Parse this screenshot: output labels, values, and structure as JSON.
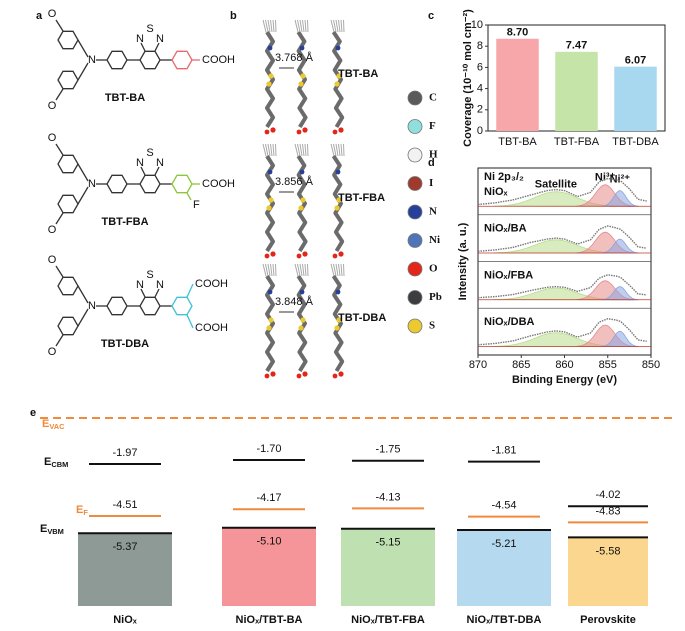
{
  "panel_letters": [
    "a",
    "b",
    "c",
    "d",
    "e"
  ],
  "molecules": [
    {
      "name": "TBT-BA",
      "amine": "N",
      "methoxy": [
        "O",
        "O"
      ],
      "thiadiazole": [
        "N",
        "S",
        "N"
      ],
      "acid": [
        "COOH"
      ],
      "acid_color": "#e8696b"
    },
    {
      "name": "TBT-FBA",
      "amine": "N",
      "methoxy": [
        "O",
        "O"
      ],
      "thiadiazole": [
        "N",
        "S",
        "N"
      ],
      "acid": [
        "COOH"
      ],
      "fluoro": "F",
      "acid_color": "#8cc63f"
    },
    {
      "name": "TBT-DBA",
      "amine": "N",
      "methoxy": [
        "O",
        "O"
      ],
      "thiadiazole": [
        "N",
        "S",
        "N"
      ],
      "acid": [
        "COOH",
        "COOH"
      ],
      "acid_color": "#3fc1d6"
    }
  ],
  "stacks": [
    {
      "name": "TBT-BA",
      "distance": "3.768 Å"
    },
    {
      "name": "TBT-FBA",
      "distance": "3.856 Å"
    },
    {
      "name": "TBT-DBA",
      "distance": "3.848 Å"
    }
  ],
  "elements": [
    {
      "symbol": "C",
      "color": "#5a5a5a"
    },
    {
      "symbol": "F",
      "color": "#8fe0dc"
    },
    {
      "symbol": "H",
      "color": "#f2f2f2"
    },
    {
      "symbol": "I",
      "color": "#9e3a2e"
    },
    {
      "symbol": "N",
      "color": "#26409a"
    },
    {
      "symbol": "Ni",
      "color": "#4f74b8"
    },
    {
      "symbol": "O",
      "color": "#e3261a"
    },
    {
      "symbol": "Pb",
      "color": "#3b3d40"
    },
    {
      "symbol": "S",
      "color": "#ecc92e"
    }
  ],
  "chart_data": [
    {
      "type": "bar",
      "ylabel": "Coverage (10⁻¹⁰ mol cm⁻²)",
      "categories": [
        "TBT-BA",
        "TBT-FBA",
        "TBT-DBA"
      ],
      "values": [
        8.7,
        7.47,
        6.07
      ],
      "value_labels": [
        "8.70",
        "7.47",
        "6.07"
      ],
      "colors": [
        "#f7a6a9",
        "#c4e4a8",
        "#a8d8f0"
      ],
      "ylim": [
        0,
        10
      ],
      "yticks": [
        0,
        2,
        4,
        6,
        8,
        10
      ]
    },
    {
      "type": "spectra",
      "title": "Ni 2p₃/₂",
      "xlabel": "Binding Energy (eV)",
      "ylabel": "Intensity (a. u.)",
      "xlim": [
        870,
        850
      ],
      "xticks": [
        870,
        865,
        860,
        855,
        850
      ],
      "x": [
        870,
        868,
        866,
        864,
        862,
        861,
        860,
        858.5,
        857,
        856,
        855,
        854,
        853.5,
        852.5,
        851.5,
        850.5
      ],
      "peak_labels": [
        "Satellite",
        "Ni³⁺",
        "Ni²⁺"
      ],
      "peak_colors": [
        "#b8dc8c",
        "#e88a8a",
        "#8aa6e0"
      ],
      "peak_label_colors": [
        "#8cc63f",
        "#d9342b",
        "#3a64b8"
      ],
      "series": [
        {
          "name": "NiOₓ",
          "color": "#222222",
          "values": [
            0.15,
            0.2,
            0.28,
            0.42,
            0.55,
            0.58,
            0.55,
            0.38,
            0.5,
            0.8,
            0.9,
            0.86,
            0.83,
            0.6,
            0.3,
            0.25
          ],
          "components": [
            {
              "center": 861,
              "width": 2.4,
              "height": 0.42
            },
            {
              "center": 855.3,
              "width": 1.1,
              "height": 0.62
            },
            {
              "center": 853.6,
              "width": 0.7,
              "height": 0.45
            }
          ]
        },
        {
          "name": "NiOₓ/BA",
          "color": "#d9342b",
          "values": [
            0.15,
            0.19,
            0.26,
            0.4,
            0.5,
            0.53,
            0.5,
            0.36,
            0.48,
            0.78,
            0.88,
            0.82,
            0.78,
            0.55,
            0.28,
            0.24
          ],
          "components": [
            {
              "center": 861,
              "width": 2.4,
              "height": 0.38
            },
            {
              "center": 855.3,
              "width": 1.1,
              "height": 0.6
            },
            {
              "center": 853.6,
              "width": 0.7,
              "height": 0.4
            }
          ]
        },
        {
          "name": "NiOₓ/FBA",
          "color": "#8cc63f",
          "values": [
            0.16,
            0.19,
            0.25,
            0.36,
            0.46,
            0.48,
            0.46,
            0.34,
            0.45,
            0.72,
            0.82,
            0.78,
            0.74,
            0.52,
            0.27,
            0.24
          ],
          "components": [
            {
              "center": 861,
              "width": 2.4,
              "height": 0.34
            },
            {
              "center": 855.3,
              "width": 1.1,
              "height": 0.55
            },
            {
              "center": 853.6,
              "width": 0.7,
              "height": 0.38
            }
          ]
        },
        {
          "name": "NiOₓ/DBA",
          "color": "#3a64b8",
          "values": [
            0.15,
            0.19,
            0.26,
            0.4,
            0.52,
            0.55,
            0.52,
            0.37,
            0.49,
            0.8,
            0.9,
            0.86,
            0.82,
            0.58,
            0.29,
            0.25
          ],
          "components": [
            {
              "center": 861,
              "width": 2.4,
              "height": 0.4
            },
            {
              "center": 855.3,
              "width": 1.1,
              "height": 0.62
            },
            {
              "center": 853.6,
              "width": 0.7,
              "height": 0.44
            }
          ]
        }
      ]
    },
    {
      "type": "energy-levels",
      "categories": [
        "NiOₓ",
        "NiOₓ/TBT-BA",
        "NiOₓ/TBT-FBA",
        "NiOₓ/TBT-DBA",
        "Perovskite"
      ],
      "vacuum": {
        "main": "E",
        "sub": "VAC",
        "color": "#f08a3c"
      },
      "fill_colors": [
        "#8e9a96",
        "#f69599",
        "#bfe1b2",
        "#b5d9ef",
        "#fbd68e"
      ],
      "series": [
        {
          "name": {
            "main": "E",
            "sub": "CBM"
          },
          "color": "#111111",
          "values": [
            -1.97,
            -1.7,
            -1.75,
            -1.81,
            -4.02
          ],
          "value_labels": [
            "-1.97",
            "-1.70",
            "-1.75",
            "-1.81",
            "-4.02"
          ]
        },
        {
          "name": {
            "main": "E",
            "sub": "F"
          },
          "color": "#f08a3c",
          "values": [
            -4.51,
            -4.17,
            -4.13,
            -4.54,
            -4.83
          ],
          "value_labels": [
            "-4.51",
            "-4.17",
            "-4.13",
            "-4.54",
            "-4.83"
          ]
        },
        {
          "name": {
            "main": "E",
            "sub": "VBM"
          },
          "color": "#111111",
          "values": [
            -5.37,
            -5.1,
            -5.15,
            -5.21,
            -5.58
          ],
          "value_labels": [
            "-5.37",
            "-5.10",
            "-5.15",
            "-5.21",
            "-5.58"
          ]
        }
      ]
    }
  ]
}
